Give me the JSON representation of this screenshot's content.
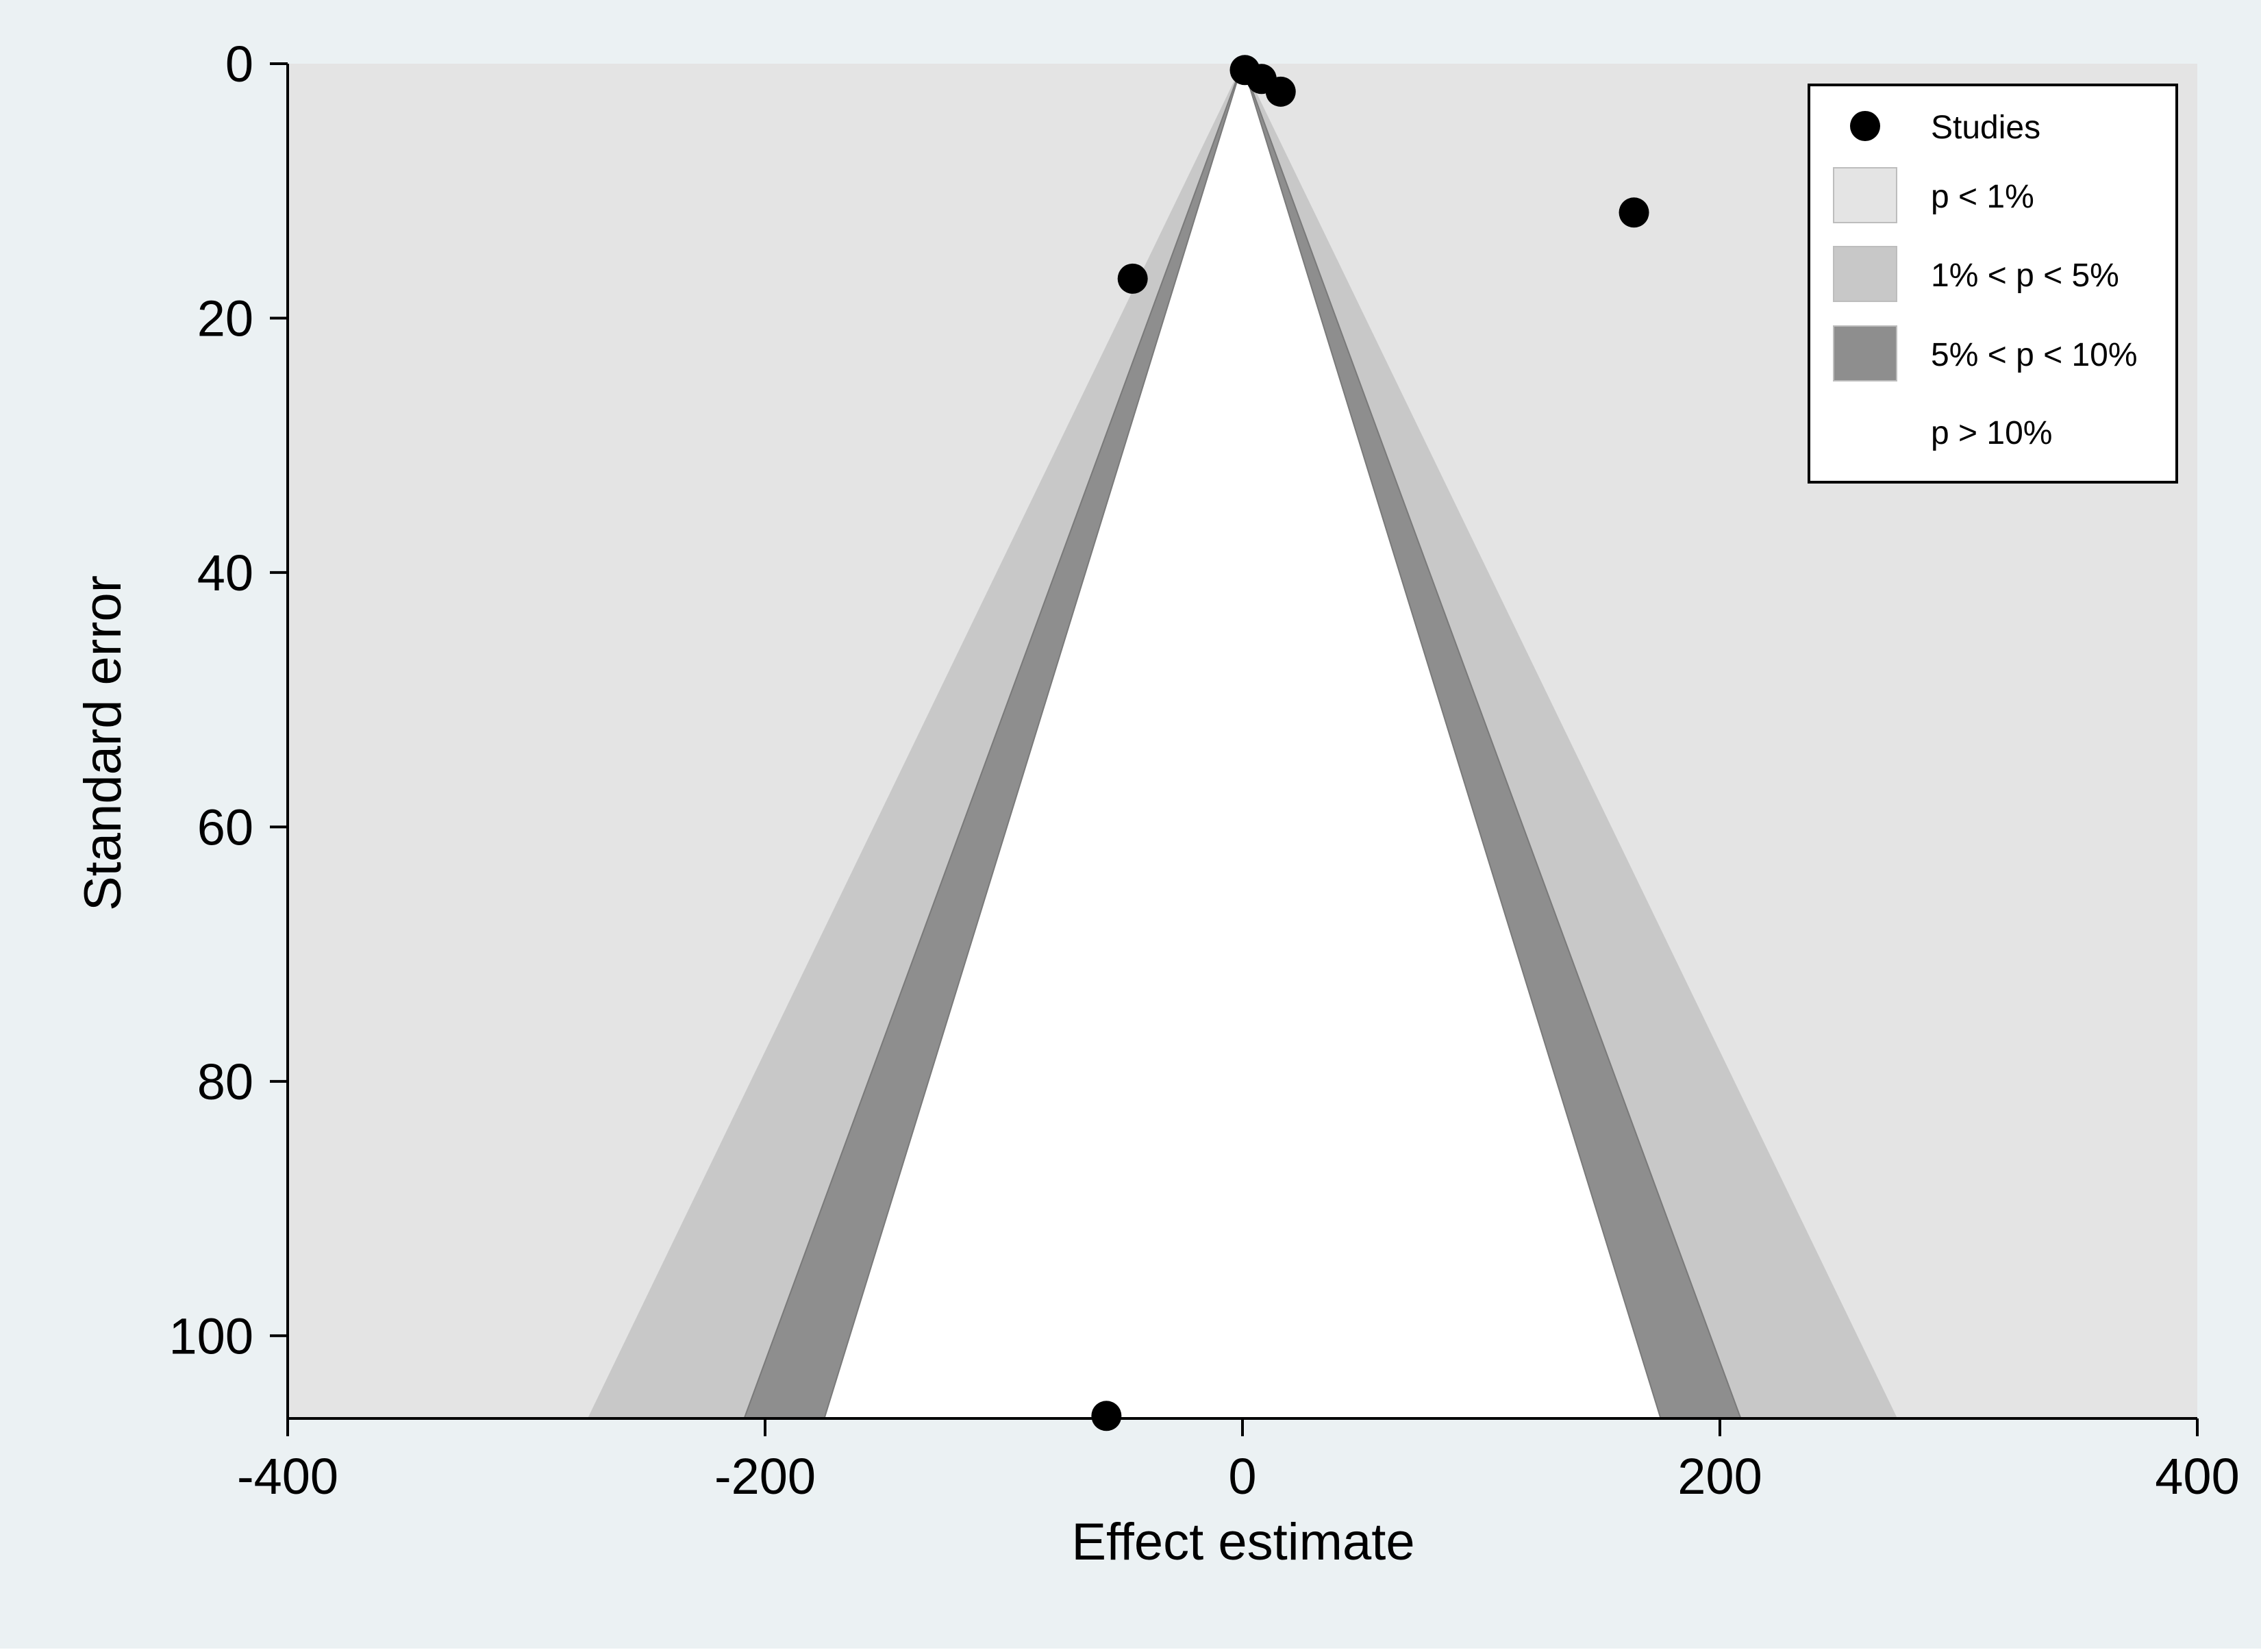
{
  "chart_data": {
    "type": "scatter",
    "subtype": "contour-enhanced funnel plot",
    "title": "",
    "xlabel": "Effect estimate",
    "ylabel": "Standard error",
    "xlim": [
      -400,
      400
    ],
    "ylim": [
      0,
      106.5
    ],
    "y_inverted": true,
    "xticks": [
      "-400",
      "-200",
      "0",
      "200",
      "400"
    ],
    "yticks": [
      "0",
      "20",
      "40",
      "60",
      "80",
      "100"
    ],
    "grid": false,
    "legend_position": "top-right",
    "legend": [
      {
        "label": "Studies",
        "kind": "marker",
        "color": "#000000"
      },
      {
        "label": "p < 1%",
        "kind": "swatch",
        "color": "#e4e4e4"
      },
      {
        "label": "1% < p < 5%",
        "kind": "swatch",
        "color": "#c8c8c8"
      },
      {
        "label": "5% < p < 10%",
        "kind": "swatch",
        "color": "#8e8e8e"
      },
      {
        "label": "p > 10%",
        "kind": "swatch",
        "color": "#ffffff"
      }
    ],
    "contours": [
      {
        "label": "1% < p < 5%",
        "z": 2.576,
        "color": "#c8c8c8"
      },
      {
        "label": "5% < p < 10%",
        "z": 1.96,
        "color": "#8e8e8e"
      },
      {
        "label": "p > 10%",
        "z": 1.645,
        "color": "#ffffff"
      }
    ],
    "series": [
      {
        "name": "Studies",
        "points": [
          {
            "x": 1,
            "y": 0.5
          },
          {
            "x": 8,
            "y": 1.2
          },
          {
            "x": 16,
            "y": 2.2
          },
          {
            "x": 164,
            "y": 11.7
          },
          {
            "x": -46,
            "y": 16.9
          },
          {
            "x": -57,
            "y": 106.3
          }
        ]
      }
    ],
    "colors": {
      "page_background": "#ebf1f3",
      "plot_background": "#e4e4e4",
      "axis": "#000000",
      "marker": "#000000"
    }
  }
}
